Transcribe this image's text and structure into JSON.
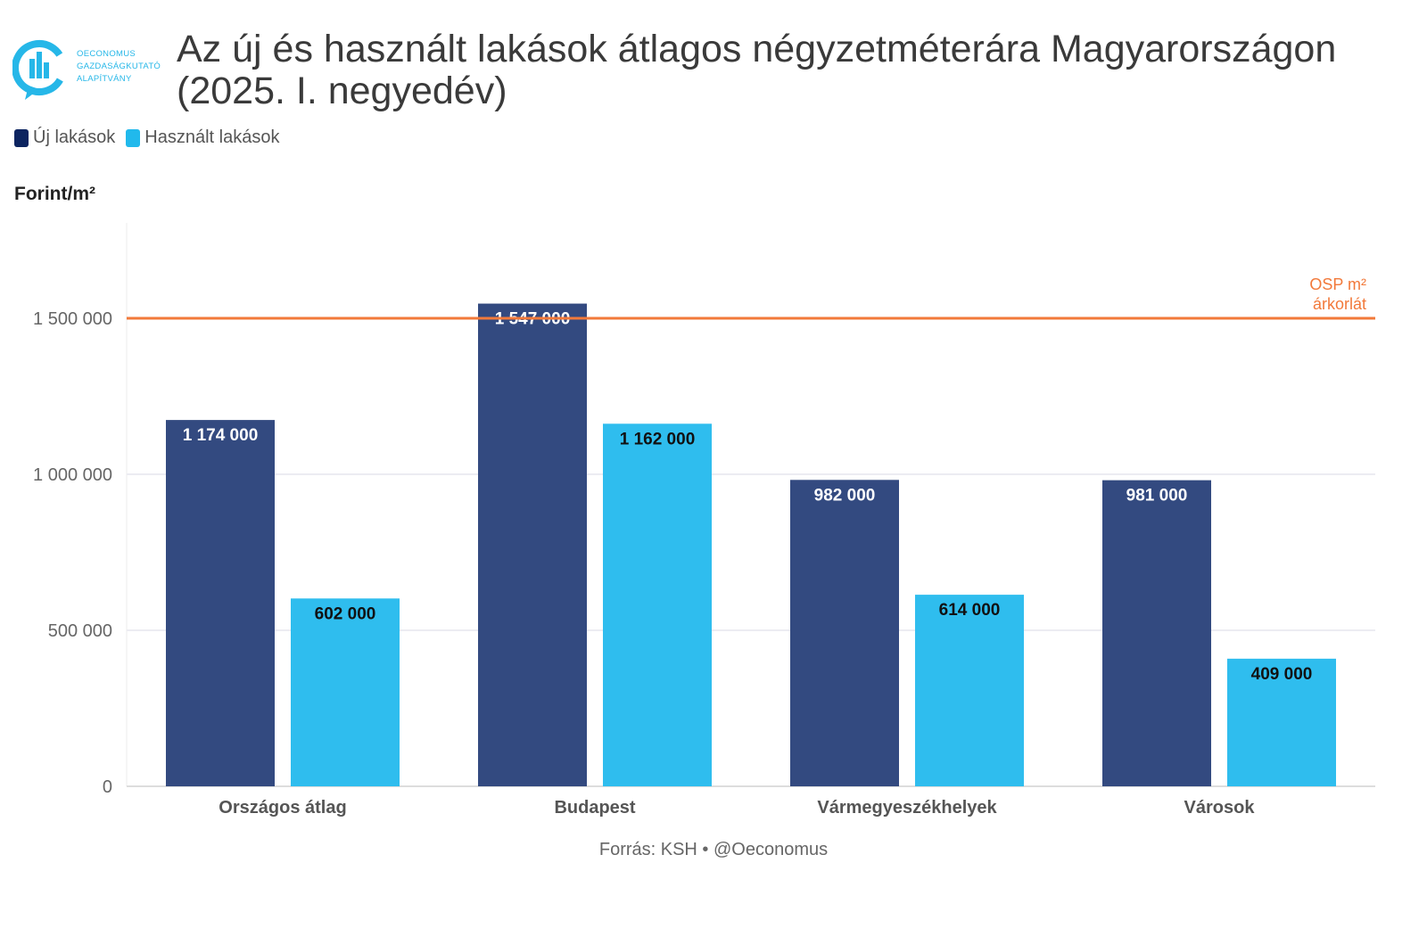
{
  "branding": {
    "logo_lines": [
      "OECONOMUS",
      "GAZDASÁGKUTATÓ",
      "ALAPÍTVÁNY"
    ]
  },
  "title": "Az új és használt lakások átlagos négyzetméterára Magyarországon (2025. I. negyedév)",
  "legend": [
    {
      "label": "Új lakások",
      "color": "#0c2460"
    },
    {
      "label": "Használt lakások",
      "color": "#21b9ec"
    }
  ],
  "source": "Forrás: KSH • @Oeconomus",
  "chart_data": {
    "type": "bar",
    "title": "Az új és használt lakások átlagos négyzetméterára Magyarországon (2025. I. negyedév)",
    "ylabel": "Forint/m²",
    "ylim": [
      0,
      1800000
    ],
    "yticks": [
      0,
      500000,
      1000000,
      1500000
    ],
    "ytick_labels": [
      "0",
      "500 000",
      "1 000 000",
      "1 500 000"
    ],
    "grid": true,
    "legend_position": "top-left",
    "categories": [
      "Országos átlag",
      "Budapest",
      "Vármegyeszékhelyek",
      "Városok"
    ],
    "series": [
      {
        "name": "Új lakások",
        "color": "#334a80",
        "label_color": "#ffffff",
        "values": [
          1174000,
          1547000,
          982000,
          981000
        ],
        "labels": [
          "1 174 000",
          "1 547 000",
          "982 000",
          "981 000"
        ]
      },
      {
        "name": "Használt lakások",
        "color": "#2fbdee",
        "label_color": "#111111",
        "values": [
          602000,
          1162000,
          614000,
          409000
        ],
        "labels": [
          "602 000",
          "1 162 000",
          "614 000",
          "409 000"
        ]
      }
    ],
    "reference_line": {
      "value": 1500000,
      "label_lines": [
        "OSP m²",
        "árkorlát"
      ],
      "color": "#f2793a"
    }
  }
}
